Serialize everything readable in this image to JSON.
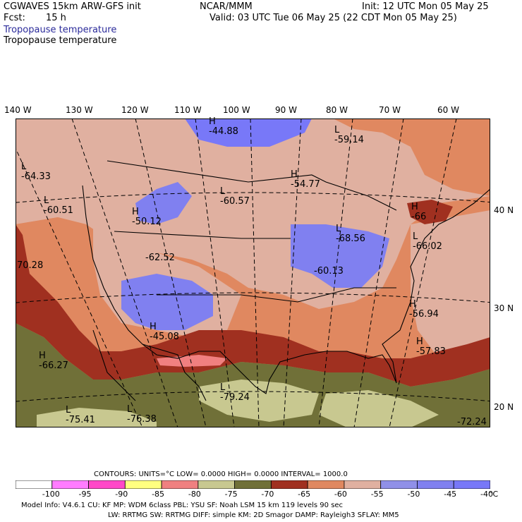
{
  "header": {
    "left_line1": "CGWAVES 15km ARW-GFS init",
    "center_line1": "NCAR/MMM",
    "right_line1": "Init: 12 UTC Mon 05 May 25",
    "fcst_label": "Fcst:",
    "fcst_value": "15 h",
    "valid": "Valid: 03 UTC Tue 06 May 25 (22 CDT Mon 05 May 25)",
    "field_title_1": "Tropopause temperature",
    "field_title_2": "Tropopause temperature"
  },
  "map": {
    "lon_labels": [
      "140 W",
      "130 W",
      "120 W",
      "110 W",
      "100 W",
      "90 W",
      "80 W",
      "70 W",
      "60 W"
    ],
    "lat_labels": [
      "40 N",
      "30 N",
      "20 N"
    ],
    "extrema": [
      {
        "type": "H",
        "value": "-44.88"
      },
      {
        "type": "L",
        "value": "-59.14"
      },
      {
        "type": "L",
        "value": "-64.33"
      },
      {
        "type": "H",
        "value": "-54.77"
      },
      {
        "type": "L",
        "value": "-60.57"
      },
      {
        "type": "L",
        "value": "-60.51"
      },
      {
        "type": "H",
        "value": "-50.12"
      },
      {
        "type": "H",
        "value": "-66"
      },
      {
        "type": "L",
        "value": "-68.56"
      },
      {
        "type": "L",
        "value": "-66.02"
      },
      {
        "type": "",
        "value": "-62.52"
      },
      {
        "type": "",
        "value": "70.28"
      },
      {
        "type": "",
        "value": "-60.13"
      },
      {
        "type": "H",
        "value": "-56.94"
      },
      {
        "type": "H",
        "value": "-45.08"
      },
      {
        "type": "H",
        "value": "-57.83"
      },
      {
        "type": "H",
        "value": "-66.27"
      },
      {
        "type": "L",
        "value": "-79.24"
      },
      {
        "type": "L",
        "value": "-75.41"
      },
      {
        "type": "L",
        "value": "-76.38"
      },
      {
        "type": "",
        "value": "-72.24"
      }
    ]
  },
  "legend": {
    "contours_line": "CONTOURS:  UNITS=°C  LOW=  0.0000       HIGH=  0.0000       INTERVAL=     1000.0",
    "bins": [
      {
        "color": "#ffffff"
      },
      {
        "color": "#ff7cff"
      },
      {
        "color": "#ff48c8"
      },
      {
        "color": "#ffff80"
      },
      {
        "color": "#f08080"
      },
      {
        "color": "#c8c890"
      },
      {
        "color": "#707038"
      },
      {
        "color": "#a03020"
      },
      {
        "color": "#e08860"
      },
      {
        "color": "#e0b0a0"
      },
      {
        "color": "#9090e8"
      },
      {
        "color": "#8080f0"
      },
      {
        "color": "#7878f8"
      }
    ],
    "tick_labels": [
      "-100",
      "-95",
      "-90",
      "-85",
      "-80",
      "-75",
      "-70",
      "-65",
      "-60",
      "-55",
      "-50",
      "-45",
      "-40",
      "°C"
    ]
  },
  "footer": {
    "line1": "Model Info: V4.6.1     CU: KF      MP: WDM 6class   PBL: YSU        SF: Noah LSM     15 km   119 levels    90 sec",
    "line2": "LW: RRTMG    SW: RRTMG  DIFF: simple KM: 2D Smagor DAMP: Rayleigh3   SFLAY: MM5"
  }
}
